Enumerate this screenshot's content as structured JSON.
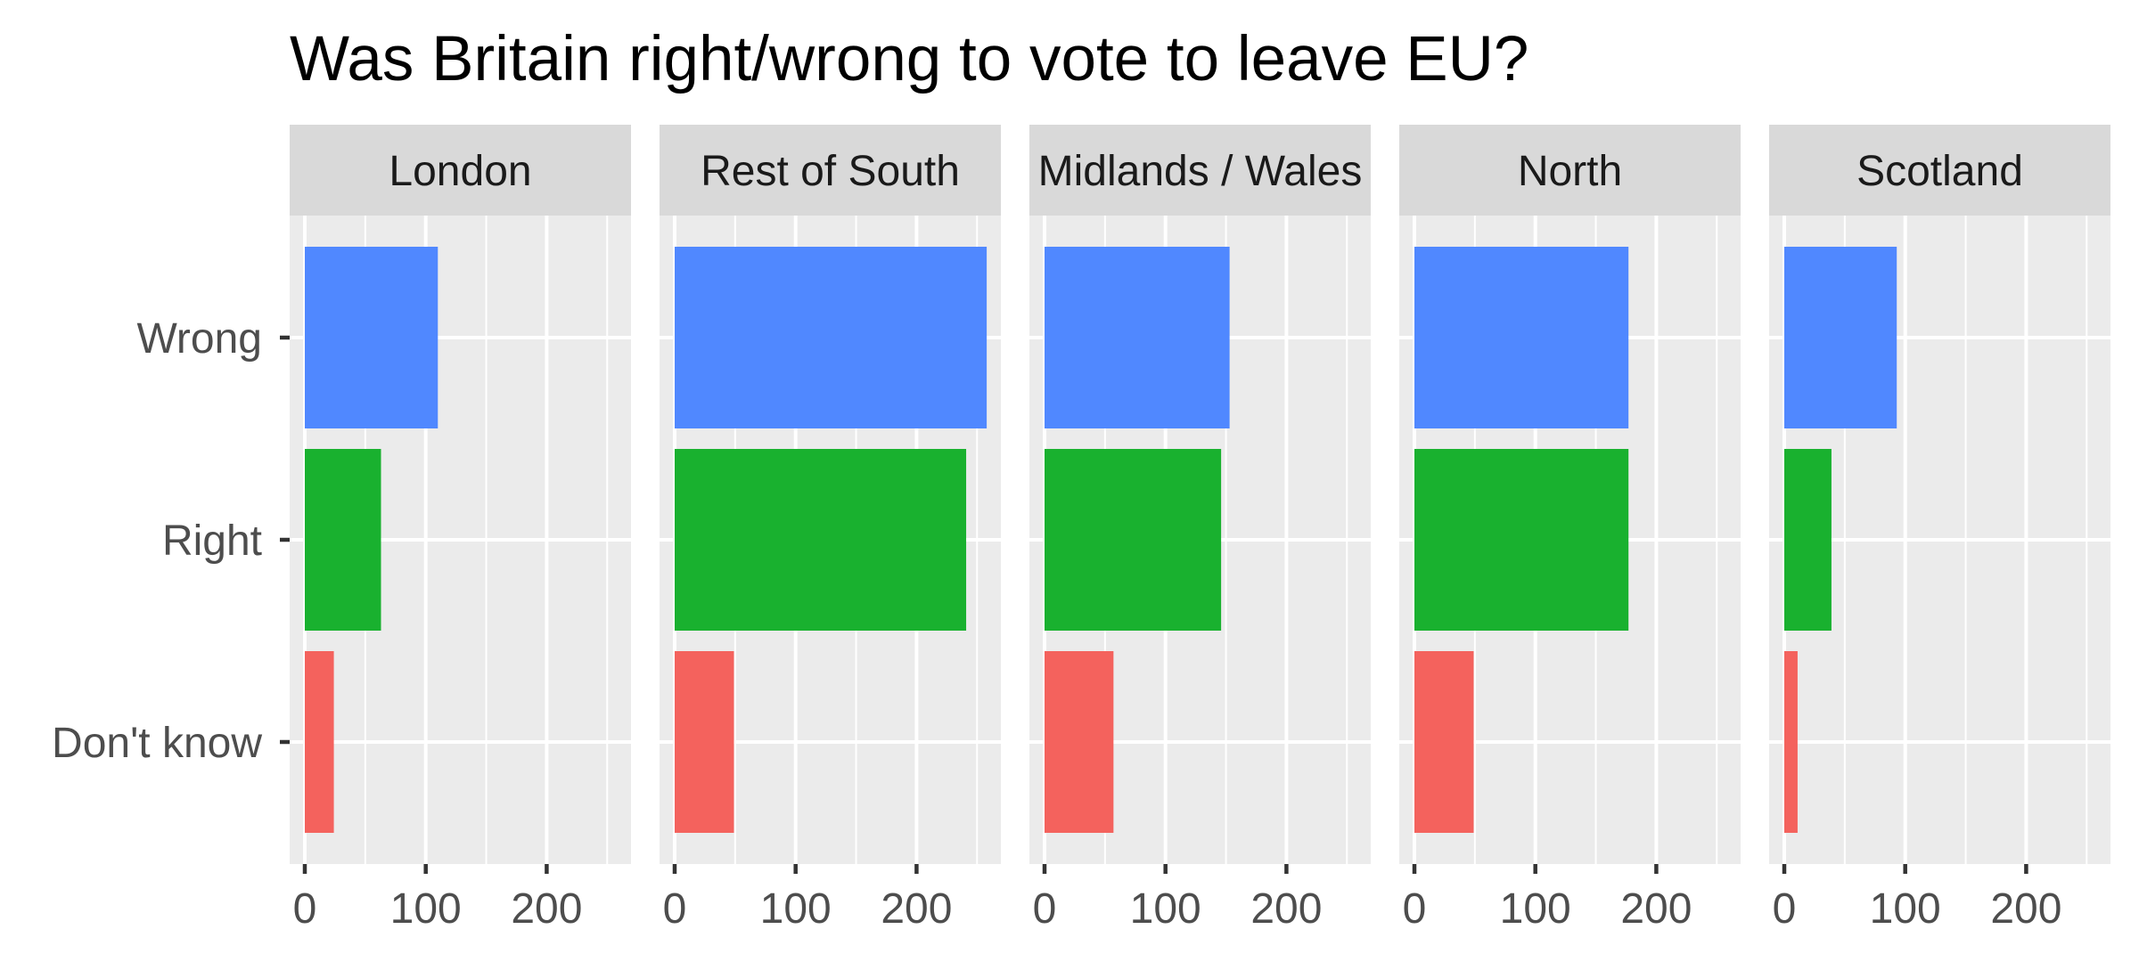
{
  "chart_data": {
    "type": "bar",
    "orientation": "horizontal",
    "title": "Was Britain right/wrong to vote to leave EU?",
    "xlabel": "",
    "ylabel": "",
    "categories": [
      "Wrong",
      "Right",
      "Don't know"
    ],
    "xlim": [
      0,
      270
    ],
    "x_ticks": [
      0,
      100,
      200
    ],
    "grid": true,
    "legend": "none",
    "colors": {
      "Wrong": "#5088FF",
      "Right": "#19B12F",
      "Don't know": "#F4625D"
    },
    "panels": [
      {
        "name": "London",
        "values": [
          110,
          63,
          24
        ]
      },
      {
        "name": "Rest of South",
        "values": [
          258,
          241,
          49
        ]
      },
      {
        "name": "Midlands / Wales",
        "values": [
          153,
          146,
          57
        ]
      },
      {
        "name": "North",
        "values": [
          177,
          177,
          49
        ]
      },
      {
        "name": "Scotland",
        "values": [
          93,
          39,
          11
        ]
      }
    ]
  }
}
